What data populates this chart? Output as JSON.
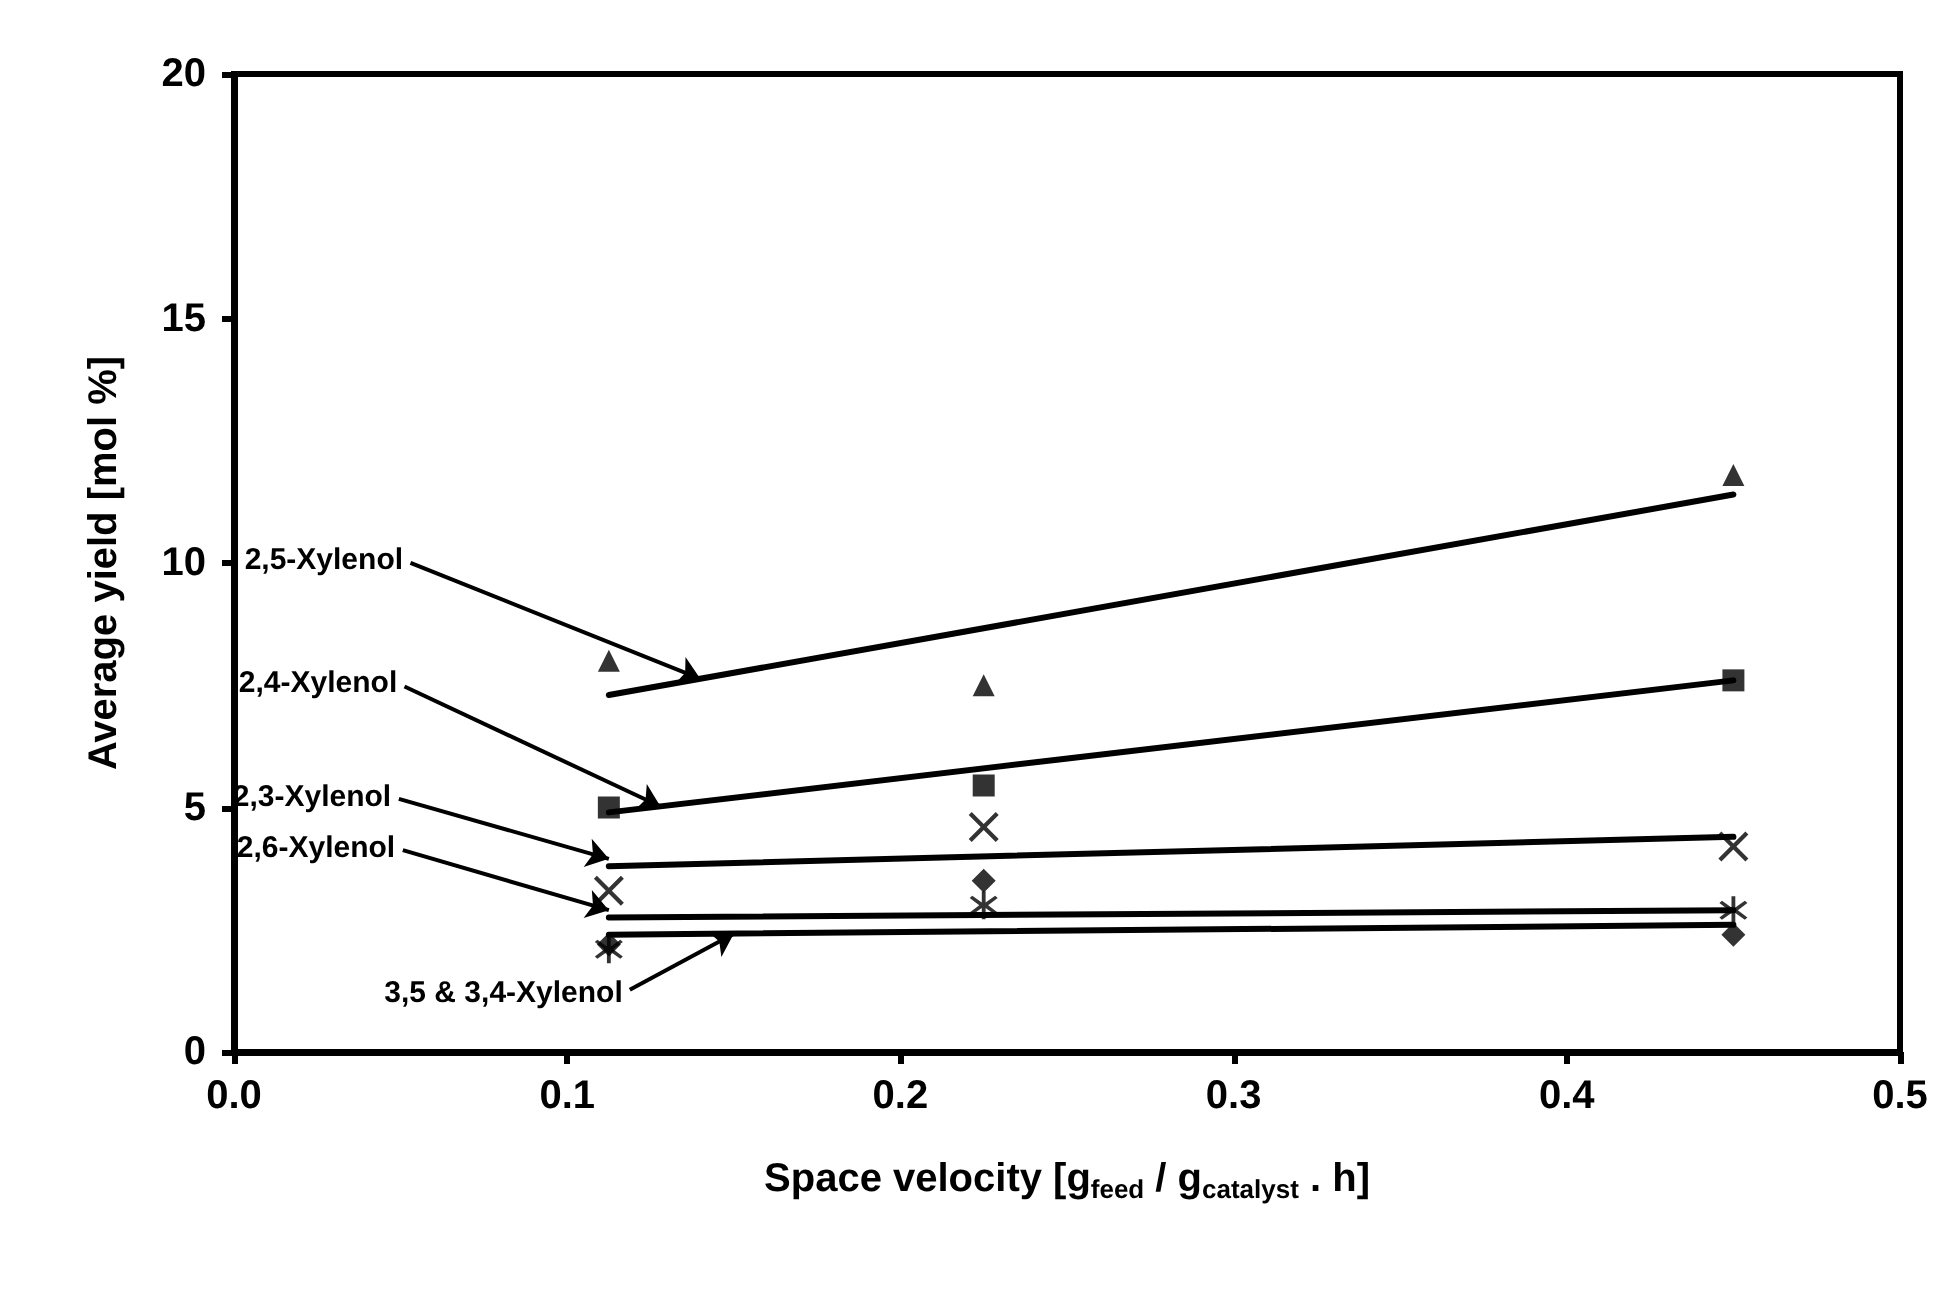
{
  "chart_data": {
    "type": "scatter",
    "xlabel": "Space velocity [g$_{feed}$ / g$_{catalyst}$ . h]",
    "ylabel": "Average yield [mol %]",
    "xlim": [
      0,
      0.5
    ],
    "xticks": [
      {
        "value": 0,
        "label": "0.0"
      },
      0.1,
      0.2,
      0.3,
      0.4,
      0.5
    ],
    "ylim": [
      0,
      20
    ],
    "yticks": [
      0,
      5,
      10,
      15,
      20
    ],
    "grid": false,
    "series": [
      {
        "marker": "triangle",
        "color": "#000000",
        "x": [
          0.1125,
          0.225,
          0.45
        ],
        "values": [
          8.0,
          7.5,
          11.8
        ]
      },
      {
        "marker": "square",
        "color": "#000000",
        "x": [
          0.1125,
          0.225,
          0.45
        ],
        "values": [
          5.0,
          5.45,
          7.6
        ]
      },
      {
        "marker": "cross",
        "color": "#000000",
        "x": [
          0.1125,
          0.225,
          0.45
        ],
        "values": [
          3.3,
          4.6,
          4.2
        ]
      },
      {
        "marker": "star",
        "color": "#000000",
        "x": [
          0.1125,
          0.225,
          0.45
        ],
        "values": [
          2.1,
          3.0,
          2.9
        ]
      },
      {
        "marker": "diamond",
        "color": "#000000",
        "x": [
          0.1125,
          0.225,
          0.45
        ],
        "values": [
          2.2,
          3.5,
          2.4
        ]
      },
      {
        "type": "line",
        "marker": "none",
        "line_style": "solid",
        "color": "#000000",
        "x": [
          0.1125,
          0.45
        ],
        "values": [
          7.3,
          11.4
        ]
      },
      {
        "type": "line",
        "marker": "none",
        "line_style": "solid",
        "color": "#000000",
        "x": [
          0.1125,
          0.45
        ],
        "values": [
          4.9,
          7.6
        ]
      },
      {
        "type": "line",
        "marker": "none",
        "line_style": "solid",
        "color": "#000000",
        "x": [
          0.1125,
          0.45
        ],
        "values": [
          3.8,
          4.4
        ]
      },
      {
        "type": "line",
        "marker": "none",
        "line_style": "solid",
        "color": "#000000",
        "x": [
          0.1125,
          0.45
        ],
        "values": [
          2.75,
          2.9
        ]
      },
      {
        "type": "line",
        "marker": "none",
        "line_style": "solid",
        "color": "#000000",
        "x": [
          0.1125,
          0.45
        ],
        "values": [
          2.4,
          2.6
        ]
      }
    ],
    "annotations": [
      {
        "text": "2,5-Xylenol",
        "x": 0.14,
        "y": 7.63
      },
      {
        "text": "2,4-Xylenol",
        "x": 0.128,
        "y": 5.02
      },
      {
        "text": "2,3-Xylenol",
        "x": 0.1125,
        "y": 3.95
      },
      {
        "text": "2,6-Xylenol",
        "x": 0.1125,
        "y": 2.9
      },
      {
        "text": "3,5 & 3,4-Xylenol",
        "x": 0.15,
        "y": 2.42
      }
    ]
  }
}
